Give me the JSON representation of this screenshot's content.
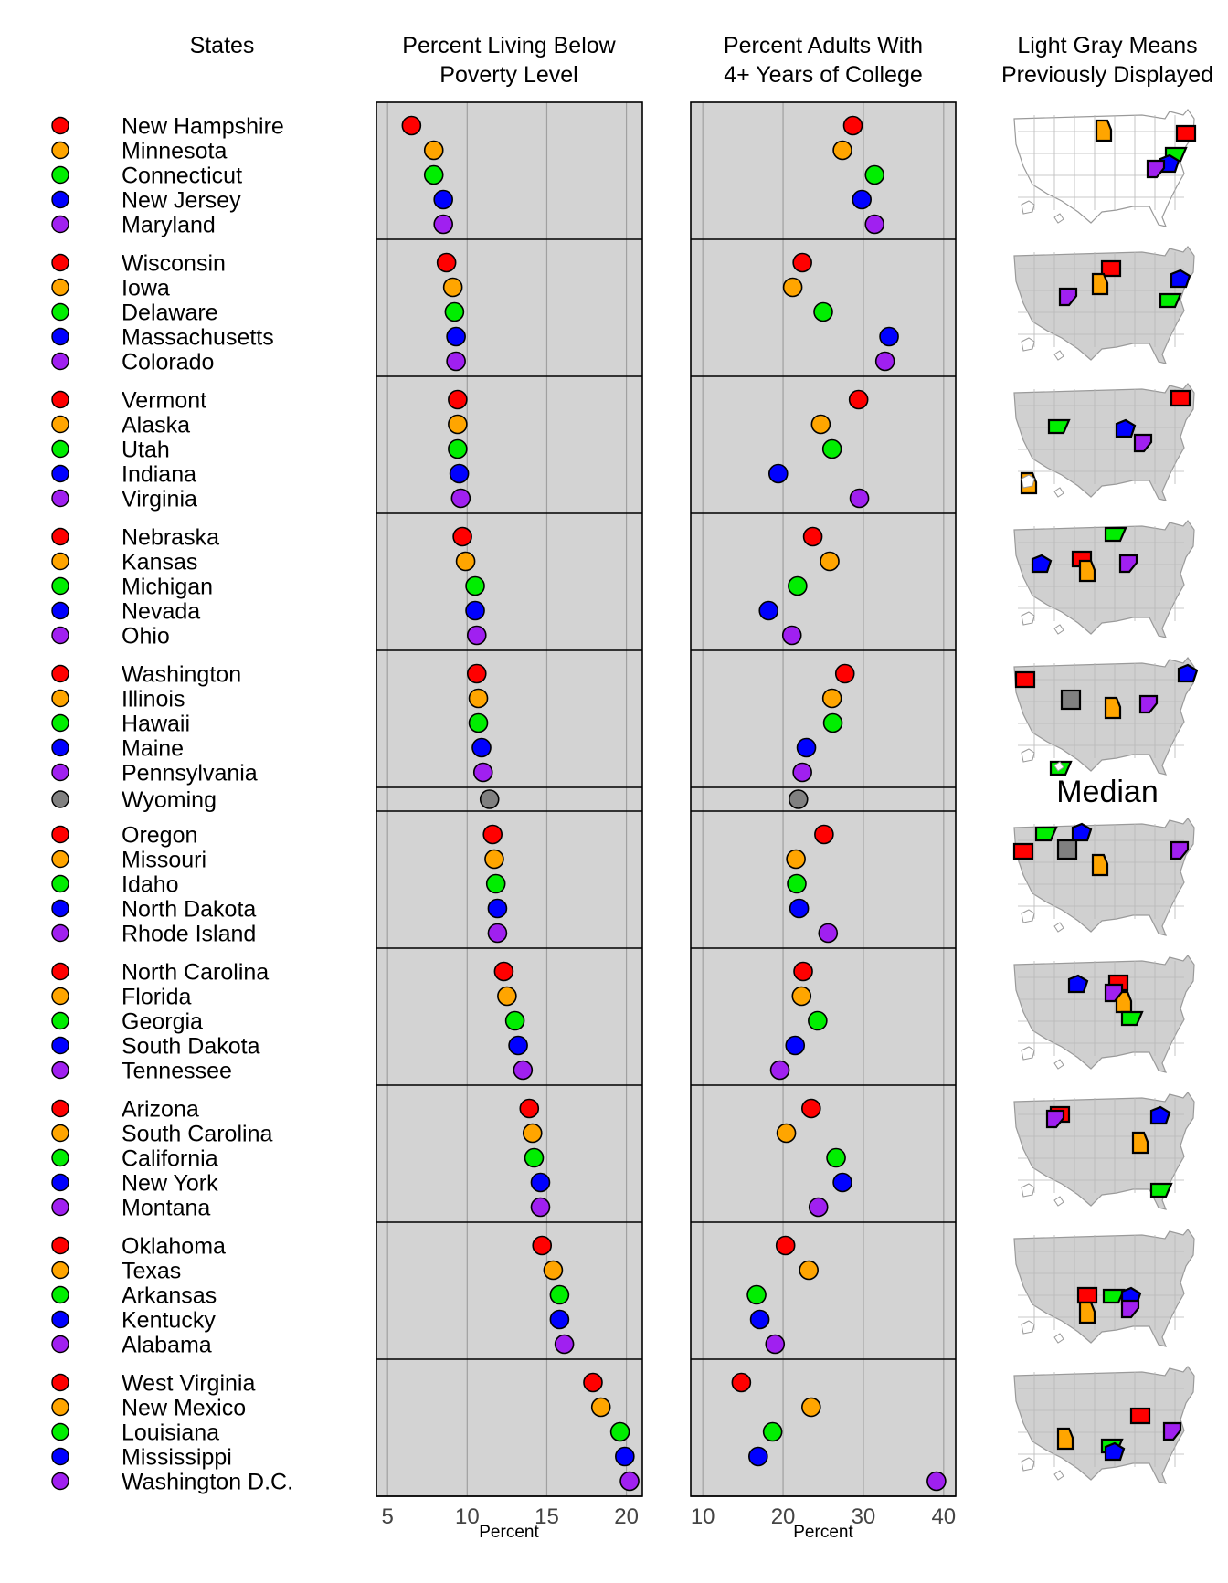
{
  "headers": {
    "states": "States",
    "poverty_line1": "Percent Living Below",
    "poverty_line2": "Poverty Level",
    "college_line1": "Percent Adults With",
    "college_line2": "4+ Years of College",
    "maps_line1": "Light Gray Means",
    "maps_line2": "Previously Displayed"
  },
  "median_label": "Median",
  "colors": {
    "group": [
      "#ff0000",
      "#ffa500",
      "#00ee00",
      "#0000ff",
      "#a020f0"
    ],
    "median": "#808080",
    "panel_bg": "#d3d3d3",
    "grid": "#a0a0a0"
  },
  "chart_data": [
    {
      "type": "scatter",
      "title": "Percent Living Below Poverty Level",
      "xlabel": "Percent",
      "xlim": [
        4.3,
        21.0
      ],
      "xticks": [
        5,
        10,
        15,
        20
      ],
      "grid": true
    },
    {
      "type": "scatter",
      "title": "Percent Adults With 4+ Years of College",
      "xlabel": "Percent",
      "xlim": [
        8.5,
        41.5
      ],
      "xticks": [
        10,
        20,
        30,
        40
      ],
      "grid": true
    }
  ],
  "groups": [
    [
      {
        "state": "New Hampshire",
        "poverty": 6.5,
        "college": 28.7
      },
      {
        "state": "Minnesota",
        "poverty": 7.9,
        "college": 27.4
      },
      {
        "state": "Connecticut",
        "poverty": 7.9,
        "college": 31.4
      },
      {
        "state": "New Jersey",
        "poverty": 8.5,
        "college": 29.8
      },
      {
        "state": "Maryland",
        "poverty": 8.5,
        "college": 31.4
      }
    ],
    [
      {
        "state": "Wisconsin",
        "poverty": 8.7,
        "college": 22.4
      },
      {
        "state": "Iowa",
        "poverty": 9.1,
        "college": 21.2
      },
      {
        "state": "Delaware",
        "poverty": 9.2,
        "college": 25.0
      },
      {
        "state": "Massachusetts",
        "poverty": 9.3,
        "college": 33.2
      },
      {
        "state": "Colorado",
        "poverty": 9.3,
        "college": 32.7
      }
    ],
    [
      {
        "state": "Vermont",
        "poverty": 9.4,
        "college": 29.4
      },
      {
        "state": "Alaska",
        "poverty": 9.4,
        "college": 24.7
      },
      {
        "state": "Utah",
        "poverty": 9.4,
        "college": 26.1
      },
      {
        "state": "Indiana",
        "poverty": 9.5,
        "college": 19.4
      },
      {
        "state": "Virginia",
        "poverty": 9.6,
        "college": 29.5
      }
    ],
    [
      {
        "state": "Nebraska",
        "poverty": 9.7,
        "college": 23.7
      },
      {
        "state": "Kansas",
        "poverty": 9.9,
        "college": 25.8
      },
      {
        "state": "Michigan",
        "poverty": 10.5,
        "college": 21.8
      },
      {
        "state": "Nevada",
        "poverty": 10.5,
        "college": 18.2
      },
      {
        "state": "Ohio",
        "poverty": 10.6,
        "college": 21.1
      }
    ],
    [
      {
        "state": "Washington",
        "poverty": 10.6,
        "college": 27.7
      },
      {
        "state": "Illinois",
        "poverty": 10.7,
        "college": 26.1
      },
      {
        "state": "Hawaii",
        "poverty": 10.7,
        "college": 26.2
      },
      {
        "state": "Maine",
        "poverty": 10.9,
        "college": 22.9
      },
      {
        "state": "Pennsylvania",
        "poverty": 11.0,
        "college": 22.4
      }
    ],
    [
      {
        "state": "Wyoming",
        "poverty": 11.4,
        "college": 21.9,
        "median": true
      }
    ],
    [
      {
        "state": "Oregon",
        "poverty": 11.6,
        "college": 25.1
      },
      {
        "state": "Missouri",
        "poverty": 11.7,
        "college": 21.6
      },
      {
        "state": "Idaho",
        "poverty": 11.8,
        "college": 21.7
      },
      {
        "state": "North Dakota",
        "poverty": 11.9,
        "college": 22.0
      },
      {
        "state": "Rhode Island",
        "poverty": 11.9,
        "college": 25.6
      }
    ],
    [
      {
        "state": "North Carolina",
        "poverty": 12.3,
        "college": 22.5
      },
      {
        "state": "Florida",
        "poverty": 12.5,
        "college": 22.3
      },
      {
        "state": "Georgia",
        "poverty": 13.0,
        "college": 24.3
      },
      {
        "state": "South Dakota",
        "poverty": 13.2,
        "college": 21.5
      },
      {
        "state": "Tennessee",
        "poverty": 13.5,
        "college": 19.6
      }
    ],
    [
      {
        "state": "Arizona",
        "poverty": 13.9,
        "college": 23.5
      },
      {
        "state": "South Carolina",
        "poverty": 14.1,
        "college": 20.4
      },
      {
        "state": "California",
        "poverty": 14.2,
        "college": 26.6
      },
      {
        "state": "New York",
        "poverty": 14.6,
        "college": 27.4
      },
      {
        "state": "Montana",
        "poverty": 14.6,
        "college": 24.4
      }
    ],
    [
      {
        "state": "Oklahoma",
        "poverty": 14.7,
        "college": 20.3
      },
      {
        "state": "Texas",
        "poverty": 15.4,
        "college": 23.2
      },
      {
        "state": "Arkansas",
        "poverty": 15.8,
        "college": 16.7
      },
      {
        "state": "Kentucky",
        "poverty": 15.8,
        "college": 17.1
      },
      {
        "state": "Alabama",
        "poverty": 16.1,
        "college": 19.0
      }
    ],
    [
      {
        "state": "West Virginia",
        "poverty": 17.9,
        "college": 14.8
      },
      {
        "state": "New Mexico",
        "poverty": 18.4,
        "college": 23.5
      },
      {
        "state": "Louisiana",
        "poverty": 19.6,
        "college": 18.7
      },
      {
        "state": "Mississippi",
        "poverty": 19.9,
        "college": 16.9
      },
      {
        "state": "Washington D.C.",
        "poverty": 20.2,
        "college": 39.1
      }
    ]
  ]
}
